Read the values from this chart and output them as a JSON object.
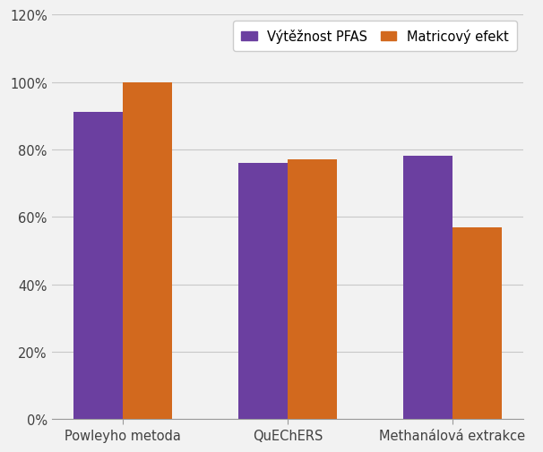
{
  "categories": [
    "Powleyho metoda",
    "QuEChERS",
    "Methanálová extrakce"
  ],
  "series": [
    {
      "name": "Výtěžnost PFAS",
      "values": [
        0.91,
        0.76,
        0.78
      ],
      "color": "#6B3FA0"
    },
    {
      "name": "Matricový efekt",
      "values": [
        1.0,
        0.77,
        0.57
      ],
      "color": "#D2691E"
    }
  ],
  "ylim": [
    0,
    1.2
  ],
  "yticks": [
    0.0,
    0.2,
    0.4,
    0.6,
    0.8,
    1.0,
    1.2
  ],
  "ytick_labels": [
    "0%",
    "20%",
    "40%",
    "60%",
    "80%",
    "100%",
    "120%"
  ],
  "bar_width": 0.3,
  "background_color": "#f2f2f2",
  "grid_color": "#c8c8c8",
  "legend_position": "upper right",
  "tick_fontsize": 10.5,
  "legend_fontsize": 10.5,
  "xlabel_fontsize": 10.5
}
